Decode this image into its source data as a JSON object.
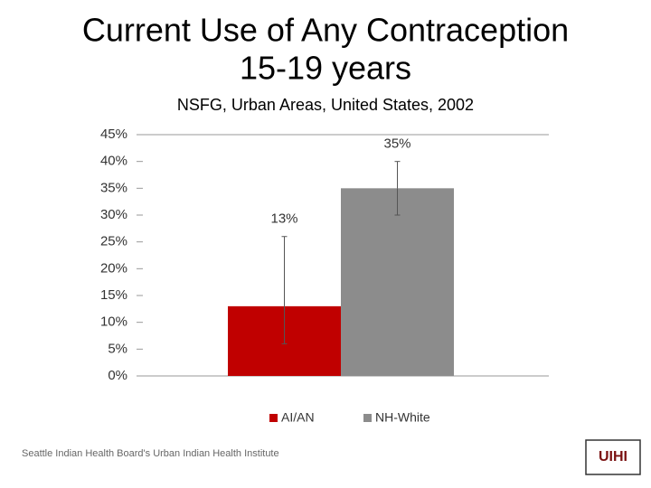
{
  "chart_data": {
    "type": "bar",
    "title": [
      "Current Use of Any Contraception",
      "15-19 years"
    ],
    "subtitle": "NSFG, Urban Areas, United States, 2002",
    "categories": [
      null
    ],
    "series": [
      {
        "name": "AI/AN",
        "color": "#c00000",
        "values": [
          13
        ],
        "value_labels": [
          "13%"
        ],
        "error_minus": [
          7
        ],
        "error_plus": [
          13
        ]
      },
      {
        "name": "NH-White",
        "color": "#8c8c8c",
        "values": [
          35
        ],
        "value_labels": [
          "35%"
        ],
        "error_minus": [
          5
        ],
        "error_plus": [
          5
        ]
      }
    ],
    "ylim": [
      0,
      45
    ],
    "yticks": [
      {
        "value": 0,
        "label": "0%"
      },
      {
        "value": 5,
        "label": "5%"
      },
      {
        "value": 10,
        "label": "10%"
      },
      {
        "value": 15,
        "label": "15%"
      },
      {
        "value": 20,
        "label": "20%"
      },
      {
        "value": 25,
        "label": "25%"
      },
      {
        "value": 30,
        "label": "30%"
      },
      {
        "value": 35,
        "label": "35%"
      },
      {
        "value": 40,
        "label": "40%"
      },
      {
        "value": 45,
        "label": "45%"
      }
    ],
    "legend": "bottom"
  },
  "footer": "Seattle Indian Health Board's Urban Indian Health Institute",
  "logo": "UIHI"
}
